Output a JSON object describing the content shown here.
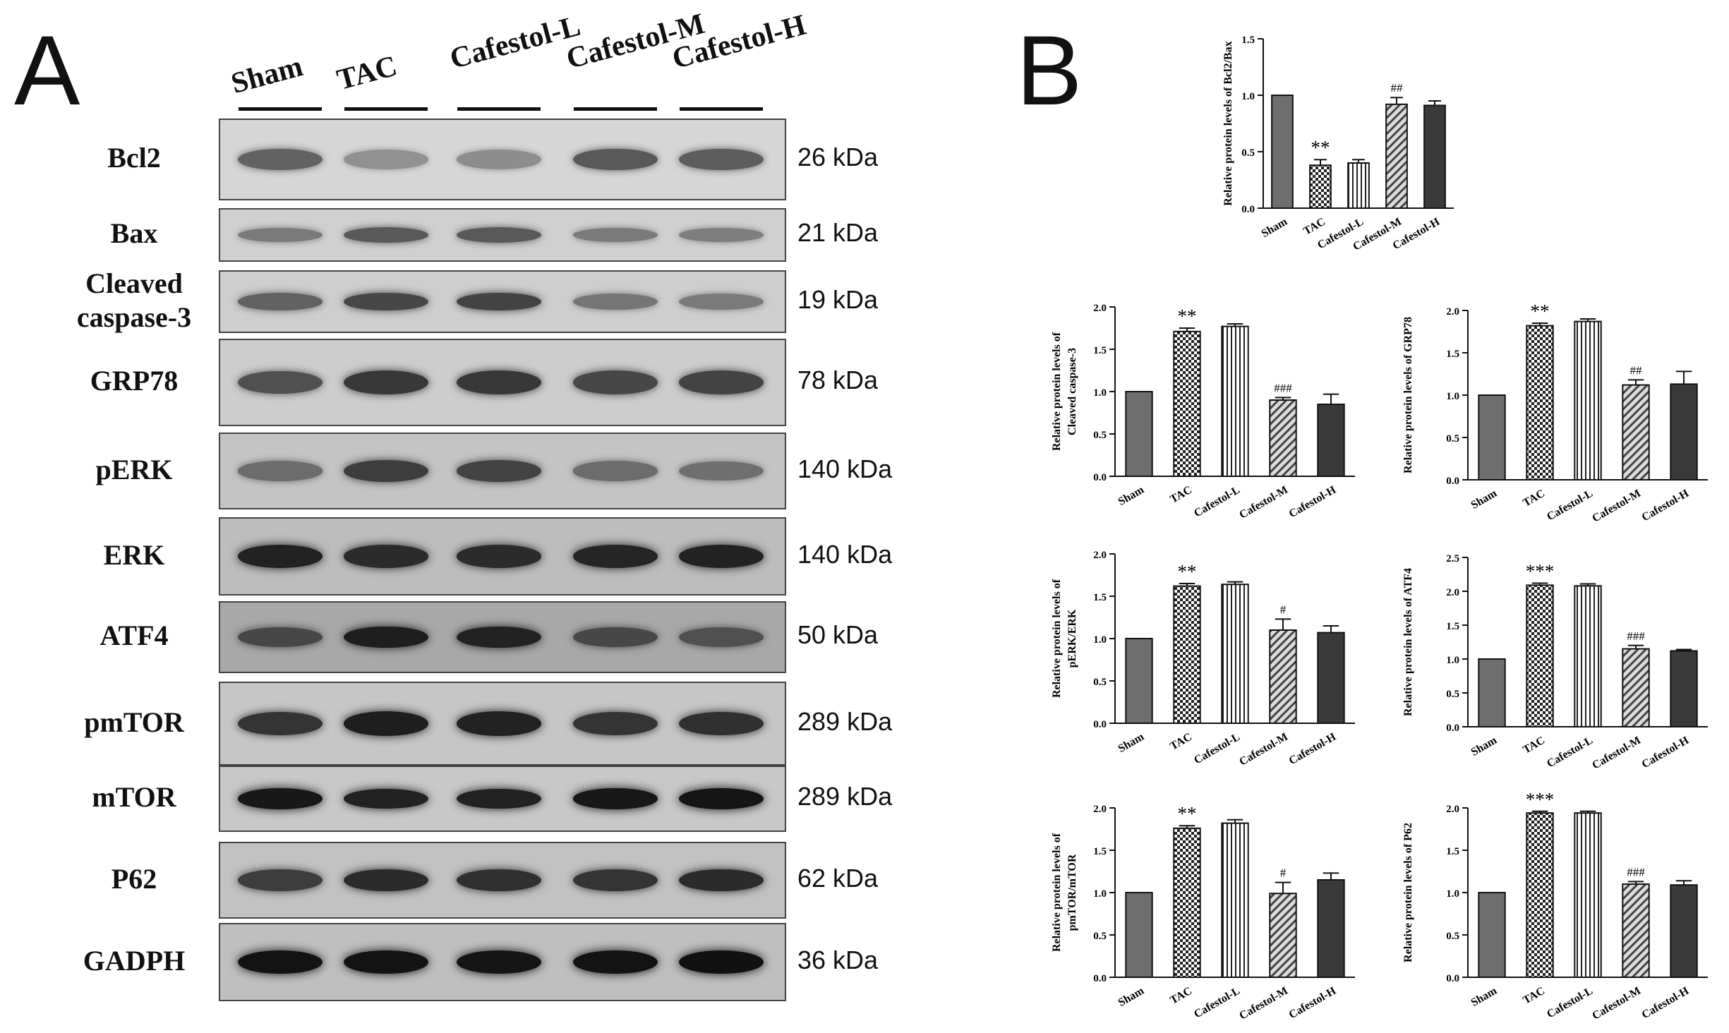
{
  "panel_a": {
    "letter": "A",
    "lanes": [
      "Sham",
      "TAC",
      "Cafestol-L",
      "Cafestol-M",
      "Cafestol-H"
    ],
    "blots": [
      {
        "label": "Bcl2",
        "kda": "26 kDa",
        "bg": "#d6d6d6",
        "intensity": [
          0.55,
          0.3,
          0.32,
          0.6,
          0.58
        ]
      },
      {
        "label": "Bax",
        "kda": "21 kDa",
        "bg": "#d0d0d0",
        "intensity": [
          0.42,
          0.6,
          0.6,
          0.42,
          0.4
        ]
      },
      {
        "label": "Cleaved\ncaspase-3",
        "kda": "19 kDa",
        "bg": "#cecece",
        "intensity": [
          0.55,
          0.7,
          0.72,
          0.45,
          0.42
        ]
      },
      {
        "label": "GRP78",
        "kda": "78 kDa",
        "bg": "#cdcdcd",
        "intensity": [
          0.65,
          0.78,
          0.78,
          0.7,
          0.72
        ]
      },
      {
        "label": "pERK",
        "kda": "140 kDa",
        "bg": "#c4c4c4",
        "intensity": [
          0.5,
          0.75,
          0.72,
          0.5,
          0.48
        ]
      },
      {
        "label": "ERK",
        "kda": "140 kDa",
        "bg": "#bdbdbd",
        "intensity": [
          0.9,
          0.85,
          0.85,
          0.88,
          0.9
        ]
      },
      {
        "label": "ATF4",
        "kda": "50 kDa",
        "bg": "#a8a8a8",
        "intensity": [
          0.7,
          0.92,
          0.9,
          0.7,
          0.65
        ]
      },
      {
        "label": "pmTOR",
        "kda": "289 kDa",
        "bg": "#c6c6c6",
        "intensity": [
          0.8,
          0.92,
          0.9,
          0.8,
          0.82
        ]
      },
      {
        "label": "mTOR",
        "kda": "289 kDa",
        "bg": "#c8c8c8",
        "intensity": [
          0.95,
          0.9,
          0.9,
          0.95,
          0.97
        ]
      },
      {
        "label": "P62",
        "kda": "62 kDa",
        "bg": "#c2c2c2",
        "intensity": [
          0.75,
          0.85,
          0.82,
          0.8,
          0.85
        ]
      },
      {
        "label": "GADPH",
        "kda": "36 kDa",
        "bg": "#bfbfbf",
        "intensity": [
          0.98,
          0.98,
          0.97,
          0.98,
          0.99
        ]
      }
    ]
  },
  "panel_b": {
    "letter": "B"
  },
  "chart_data": [
    {
      "type": "bar",
      "categories": [
        "Sham",
        "TAC",
        "Cafestol-L",
        "Cafestol-M",
        "Cafestol-H"
      ],
      "values": [
        1.0,
        0.38,
        0.4,
        0.92,
        0.91
      ],
      "errors": [
        0,
        0.05,
        0.03,
        0.06,
        0.04
      ],
      "annotations": [
        "",
        "**",
        "",
        "##",
        ""
      ],
      "ylabel": "Relative protein levels of  Bcl2/Bax",
      "ylim": [
        0,
        1.5
      ],
      "yticks": [
        "0.0",
        "0.5",
        "1.0",
        "1.5"
      ]
    },
    {
      "type": "bar",
      "categories": [
        "Sham",
        "TAC",
        "Cafestol-L",
        "Cafestol-M",
        "Cafestol-H"
      ],
      "values": [
        1.0,
        1.71,
        1.77,
        0.9,
        0.85
      ],
      "errors": [
        0,
        0.04,
        0.03,
        0.03,
        0.12
      ],
      "annotations": [
        "",
        "**",
        "",
        "###",
        ""
      ],
      "ylabel": "Relative protein levels of\nCleaved caspase-3",
      "ylim": [
        0,
        2.0
      ],
      "yticks": [
        "0.0",
        "0.5",
        "1.0",
        "1.5",
        "2.0"
      ]
    },
    {
      "type": "bar",
      "categories": [
        "Sham",
        "TAC",
        "Cafestol-L",
        "Cafestol-M",
        "Cafestol-H"
      ],
      "values": [
        1.0,
        1.82,
        1.87,
        1.12,
        1.13
      ],
      "errors": [
        0,
        0.03,
        0.03,
        0.06,
        0.15
      ],
      "annotations": [
        "",
        "**",
        "",
        "##",
        ""
      ],
      "ylabel": "Relative protein levels of GRP78",
      "ylim": [
        0,
        2.0
      ],
      "yticks": [
        "0.0",
        "0.5",
        "1.0",
        "1.5",
        "2.0"
      ]
    },
    {
      "type": "bar",
      "categories": [
        "Sham",
        "TAC",
        "Cafestol-L",
        "Cafestol-M",
        "Cafestol-H"
      ],
      "values": [
        1.0,
        1.62,
        1.64,
        1.1,
        1.07
      ],
      "errors": [
        0,
        0.03,
        0.03,
        0.13,
        0.08
      ],
      "annotations": [
        "",
        "**",
        "",
        "#",
        ""
      ],
      "ylabel": "Relative protein levels of\npERK/ERK",
      "ylim": [
        0,
        2.0
      ],
      "yticks": [
        "0.0",
        "0.5",
        "1.0",
        "1.5",
        "2.0"
      ]
    },
    {
      "type": "bar",
      "categories": [
        "Sham",
        "TAC",
        "Cafestol-L",
        "Cafestol-M",
        "Cafestol-H"
      ],
      "values": [
        1.0,
        2.09,
        2.08,
        1.15,
        1.12
      ],
      "errors": [
        0,
        0.03,
        0.03,
        0.05,
        0.02
      ],
      "annotations": [
        "",
        "***",
        "",
        "###",
        ""
      ],
      "ylabel": "Relative protein levels of ATF4",
      "ylim": [
        0,
        2.5
      ],
      "yticks": [
        "0.0",
        "0.5",
        "1.0",
        "1.5",
        "2.0",
        "2.5"
      ]
    },
    {
      "type": "bar",
      "categories": [
        "Sham",
        "TAC",
        "Cafestol-L",
        "Cafestol-M",
        "Cafestol-H"
      ],
      "values": [
        1.0,
        1.76,
        1.82,
        0.99,
        1.15
      ],
      "errors": [
        0,
        0.03,
        0.04,
        0.13,
        0.08
      ],
      "annotations": [
        "",
        "**",
        "",
        "#",
        ""
      ],
      "ylabel": "Relative protein levels of\npmTOR/mTOR",
      "ylim": [
        0,
        2.0
      ],
      "yticks": [
        "0.0",
        "0.5",
        "1.0",
        "1.5",
        "2.0"
      ]
    },
    {
      "type": "bar",
      "categories": [
        "Sham",
        "TAC",
        "Cafestol-L",
        "Cafestol-M",
        "Cafestol-H"
      ],
      "values": [
        1.0,
        1.94,
        1.94,
        1.1,
        1.09
      ],
      "errors": [
        0,
        0.02,
        0.02,
        0.03,
        0.05
      ],
      "annotations": [
        "",
        "***",
        "",
        "###",
        ""
      ],
      "ylabel": "Relative protein levels of P62",
      "ylim": [
        0,
        2.0
      ],
      "yticks": [
        "0.0",
        "0.5",
        "1.0",
        "1.5",
        "2.0"
      ]
    }
  ]
}
